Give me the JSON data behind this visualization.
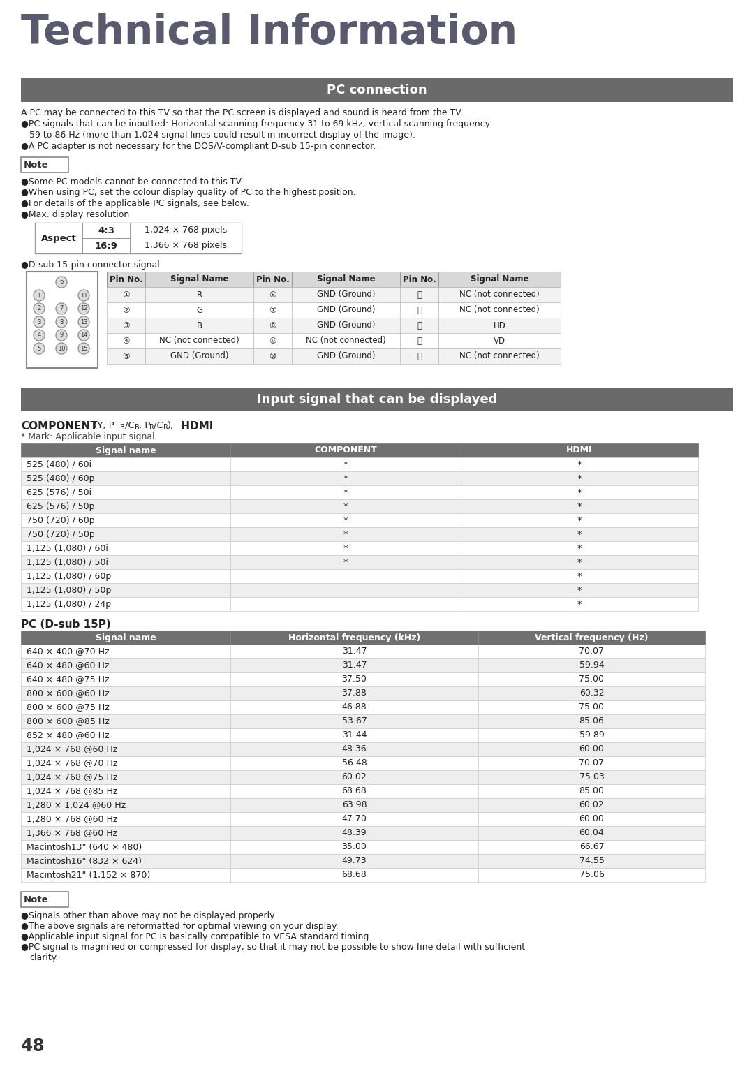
{
  "title": "Technical Information",
  "section1_title": "PC connection",
  "section2_title": "Input signal that can be displayed",
  "bg_color": "#ffffff",
  "header_bg": "#6a6a6a",
  "header_fg": "#ffffff",
  "text_color": "#222222",
  "pc_connection_lines": [
    "A PC may be connected to this TV so that the PC screen is displayed and sound is heard from the TV.",
    "●PC signals that can be inputted: Horizontal scanning frequency 31 to 69 kHz; vertical scanning frequency",
    "   59 to 86 Hz (more than 1,024 signal lines could result in incorrect display of the image).",
    "●A PC adapter is not necessary for the DOS/V-compliant D-sub 15-pin connector."
  ],
  "note1_items": [
    "Some PC models cannot be connected to this TV.",
    "When using PC, set the colour display quality of PC to the highest position.",
    "For details of the applicable PC signals, see below.",
    "Max. display resolution"
  ],
  "aspect_rows": [
    [
      "4:3",
      "1,024 × 768 pixels"
    ],
    [
      "16:9",
      "1,366 × 768 pixels"
    ]
  ],
  "dsub_label": "●D-sub 15-pin connector signal",
  "dsub_headers": [
    "Pin No.",
    "Signal Name",
    "Pin No.",
    "Signal Name",
    "Pin No.",
    "Signal Name"
  ],
  "dsub_rows": [
    [
      "①",
      "R",
      "⑥",
      "GND (Ground)",
      "⑪",
      "NC (not connected)"
    ],
    [
      "②",
      "G",
      "⑦",
      "GND (Ground)",
      "⑫",
      "NC (not connected)"
    ],
    [
      "③",
      "B",
      "⑧",
      "GND (Ground)",
      "⑬",
      "HD"
    ],
    [
      "④",
      "NC (not connected)",
      "⑨",
      "NC (not connected)",
      "⑭",
      "VD"
    ],
    [
      "⑤",
      "GND (Ground)",
      "⑩",
      "GND (Ground)",
      "⑮",
      "NC (not connected)"
    ]
  ],
  "component_headers": [
    "Signal name",
    "COMPONENT",
    "HDMI"
  ],
  "component_rows": [
    [
      "525 (480) / 60i",
      "*",
      "*"
    ],
    [
      "525 (480) / 60p",
      "*",
      "*"
    ],
    [
      "625 (576) / 50i",
      "*",
      "*"
    ],
    [
      "625 (576) / 50p",
      "*",
      "*"
    ],
    [
      "750 (720) / 60p",
      "*",
      "*"
    ],
    [
      "750 (720) / 50p",
      "*",
      "*"
    ],
    [
      "1,125 (1,080) / 60i",
      "*",
      "*"
    ],
    [
      "1,125 (1,080) / 50i",
      "*",
      "*"
    ],
    [
      "1,125 (1,080) / 60p",
      "",
      "*"
    ],
    [
      "1,125 (1,080) / 50p",
      "",
      "*"
    ],
    [
      "1,125 (1,080) / 24p",
      "",
      "*"
    ]
  ],
  "pc_dsub_title": "PC (D-sub 15P)",
  "pc_dsub_headers": [
    "Signal name",
    "Horizontal frequency (kHz)",
    "Vertical frequency (Hz)"
  ],
  "pc_dsub_rows": [
    [
      "640 × 400 @70 Hz",
      "31.47",
      "70.07"
    ],
    [
      "640 × 480 @60 Hz",
      "31.47",
      "59.94"
    ],
    [
      "640 × 480 @75 Hz",
      "37.50",
      "75.00"
    ],
    [
      "800 × 600 @60 Hz",
      "37.88",
      "60.32"
    ],
    [
      "800 × 600 @75 Hz",
      "46.88",
      "75.00"
    ],
    [
      "800 × 600 @85 Hz",
      "53.67",
      "85.06"
    ],
    [
      "852 × 480 @60 Hz",
      "31.44",
      "59.89"
    ],
    [
      "1,024 × 768 @60 Hz",
      "48.36",
      "60.00"
    ],
    [
      "1,024 × 768 @70 Hz",
      "56.48",
      "70.07"
    ],
    [
      "1,024 × 768 @75 Hz",
      "60.02",
      "75.03"
    ],
    [
      "1,024 × 768 @85 Hz",
      "68.68",
      "85.00"
    ],
    [
      "1,280 × 1,024 @60 Hz",
      "63.98",
      "60.02"
    ],
    [
      "1,280 × 768 @60 Hz",
      "47.70",
      "60.00"
    ],
    [
      "1,366 × 768 @60 Hz",
      "48.39",
      "60.04"
    ],
    [
      "Macintosh13\" (640 × 480)",
      "35.00",
      "66.67"
    ],
    [
      "Macintosh16\" (832 × 624)",
      "49.73",
      "74.55"
    ],
    [
      "Macintosh21\" (1,152 × 870)",
      "68.68",
      "75.06"
    ]
  ],
  "note2_items": [
    "Signals other than above may not be displayed properly.",
    "The above signals are reformatted for optimal viewing on your display.",
    "Applicable input signal for PC is basically compatible to VESA standard timing.",
    "PC signal is magnified or compressed for display, so that it may not be possible to show fine detail with sufficient",
    "  clarity."
  ],
  "page_number": "48"
}
